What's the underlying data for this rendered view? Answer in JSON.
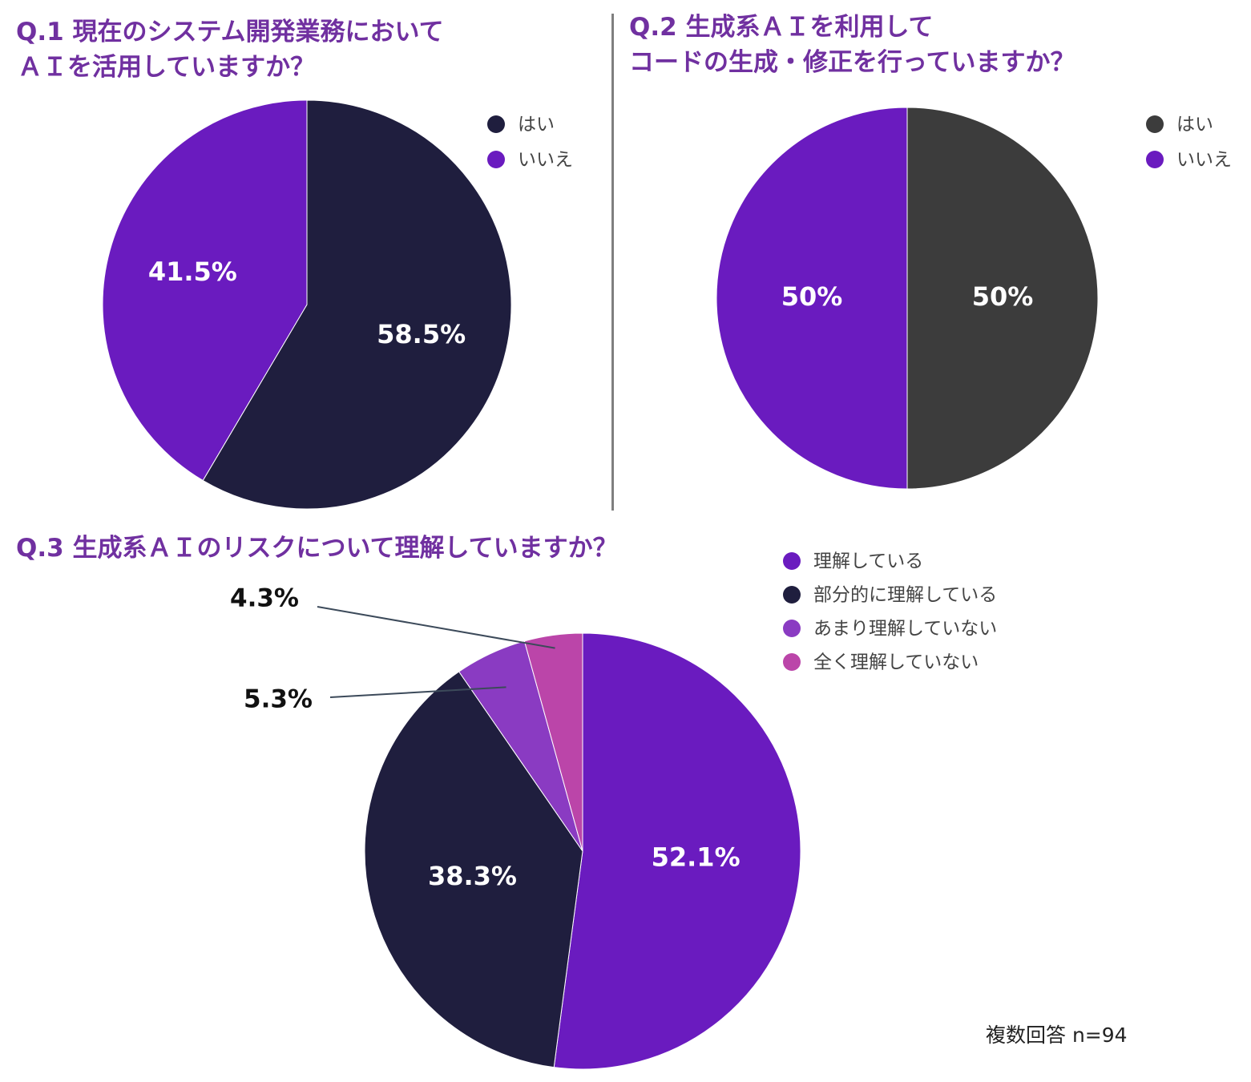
{
  "colors": {
    "title": "#7030a0",
    "divider": "#7f7f7f",
    "label_text": "#ffffff",
    "outside_label_text": "#111111",
    "legend_text": "#444444"
  },
  "note": "複数回答 n=94",
  "chart_data": [
    {
      "type": "pie",
      "title_lines": [
        "Q.1 現在のシステム開発業務において",
        "ＡＩを活用していますか？"
      ],
      "categories": [
        "はい",
        "いいえ"
      ],
      "values": [
        58.5,
        41.5
      ],
      "labels": [
        "58.5%",
        "41.5%"
      ],
      "colors": [
        "#1f1e3e",
        "#6a1bbf"
      ],
      "start_angle_deg": 0,
      "direction": "clockwise",
      "legend": "top-right"
    },
    {
      "type": "pie",
      "title_lines": [
        "Q.2 生成系ＡＩを利用して",
        "コードの生成・修正を行っていますか？"
      ],
      "categories": [
        "はい",
        "いいえ"
      ],
      "values": [
        50,
        50
      ],
      "labels": [
        "50%",
        "50%"
      ],
      "colors": [
        "#3c3c3c",
        "#6a1bbf"
      ],
      "start_angle_deg": 0,
      "direction": "clockwise",
      "legend": "top-right"
    },
    {
      "type": "pie",
      "title_lines": [
        "Q.3 生成系ＡＩのリスクについて理解していますか？"
      ],
      "categories": [
        "理解している",
        "部分的に理解している",
        "あまり理解していない",
        "全く理解していない"
      ],
      "values": [
        52.1,
        38.3,
        5.3,
        4.3
      ],
      "labels": [
        "52.1%",
        "38.3%",
        "5.3%",
        "4.3%"
      ],
      "colors": [
        "#6a1bbf",
        "#1f1e3e",
        "#8a3bc2",
        "#bb45a9"
      ],
      "start_angle_deg": 0,
      "direction": "clockwise",
      "legend": "right"
    }
  ]
}
